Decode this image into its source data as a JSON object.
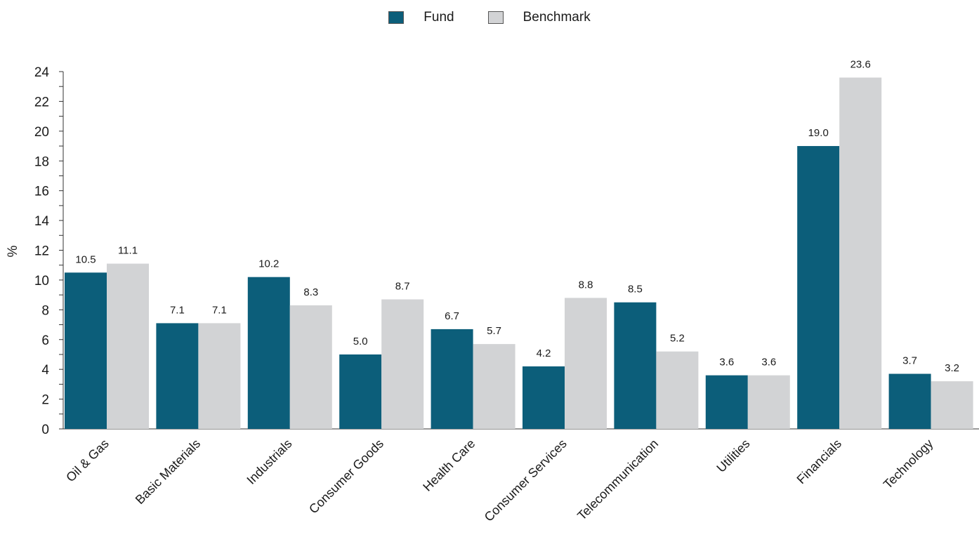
{
  "chart_data": {
    "type": "bar",
    "title": "",
    "xlabel": "",
    "ylabel": "%",
    "ylim": [
      0,
      24
    ],
    "y_major_step": 2,
    "y_minor_step": 1,
    "grid": false,
    "legend_position": "top-center",
    "categories": [
      "Oil & Gas",
      "Basic Materials",
      "Industrials",
      "Consumer Goods",
      "Health Care",
      "Consumer Services",
      "Telecommunication",
      "Utilities",
      "Financials",
      "Technology"
    ],
    "series": [
      {
        "name": "Fund",
        "color": "#0c5e7a",
        "values": [
          10.5,
          7.1,
          10.2,
          5.0,
          6.7,
          4.2,
          8.5,
          3.6,
          19.0,
          3.7
        ]
      },
      {
        "name": "Benchmark",
        "color": "#d2d3d5",
        "values": [
          11.1,
          7.1,
          8.3,
          8.7,
          5.7,
          8.8,
          5.2,
          3.6,
          23.6,
          3.2
        ]
      }
    ]
  }
}
